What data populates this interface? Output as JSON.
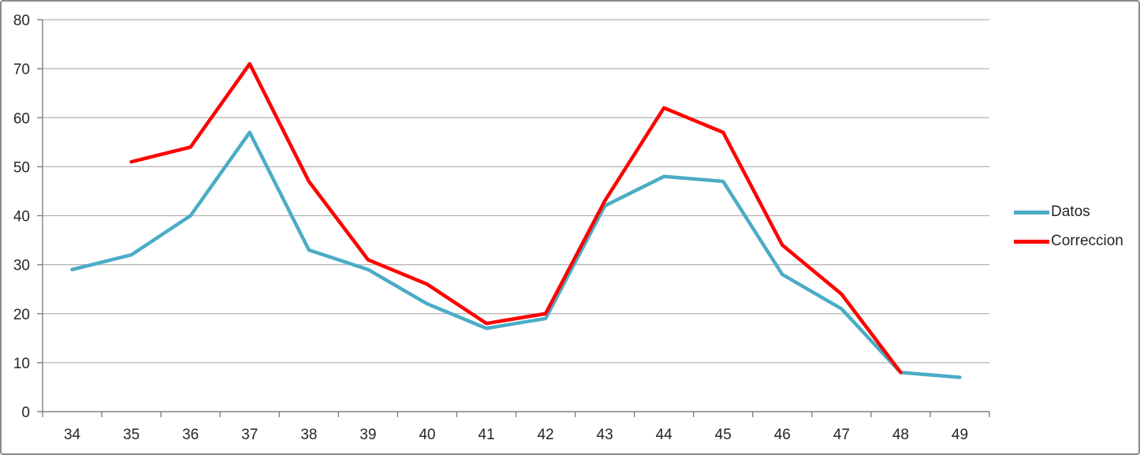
{
  "window": {
    "background_color": "#ffffff",
    "border_color": "#8a8a8a"
  },
  "chart_data": {
    "type": "line",
    "title": "",
    "xlabel": "",
    "ylabel": "",
    "categories": [
      34,
      35,
      36,
      37,
      38,
      39,
      40,
      41,
      42,
      43,
      44,
      45,
      46,
      47,
      48,
      49
    ],
    "series": [
      {
        "name": "Datos",
        "color": "#4BACC6",
        "values": [
          29,
          32,
          40,
          57,
          33,
          29,
          22,
          17,
          19,
          42,
          48,
          47,
          28,
          21,
          8,
          7
        ]
      },
      {
        "name": "Correccion",
        "color": "#FF0000",
        "values": [
          null,
          51,
          54,
          71,
          47,
          31,
          26,
          18,
          20,
          43,
          62,
          57,
          34,
          24,
          8,
          null
        ]
      }
    ],
    "ylim": [
      0,
      80
    ],
    "ytick_step": 10,
    "yticks": [
      0,
      10,
      20,
      30,
      40,
      50,
      60,
      70,
      80
    ],
    "grid": true,
    "legend_position": "right",
    "colors": {
      "gridline": "#b3b3b3",
      "axis": "#808080",
      "tick_label": "#262626"
    }
  }
}
